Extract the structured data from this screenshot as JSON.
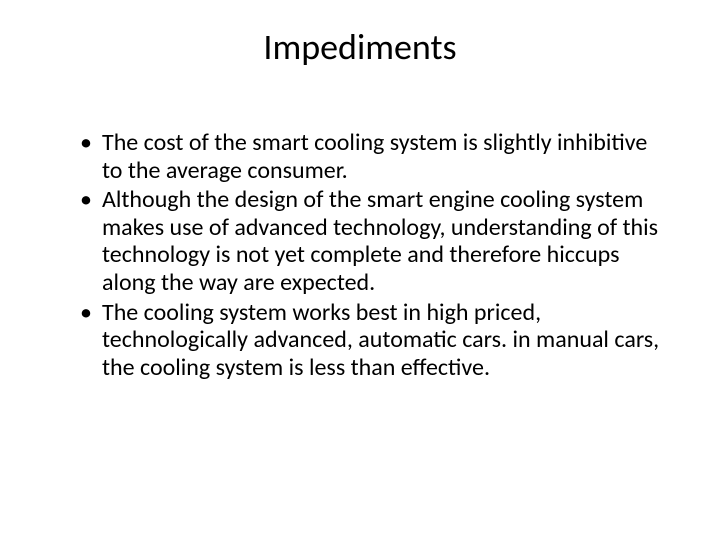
{
  "slide": {
    "title": "Impediments",
    "title_fontsize": 36,
    "body_fontsize": 24,
    "background_color": "#ffffff",
    "text_color": "#000000",
    "font_family": "Calibri",
    "bullets": [
      "The cost of the smart cooling system is slightly inhibitive to the average consumer.",
      "Although the design of the smart engine cooling system makes use of advanced technology, understanding of this technology is not yet complete and therefore hiccups along the way are expected.",
      "The cooling system works best in high priced, technologically advanced, automatic cars. in manual cars, the cooling system is less than effective."
    ]
  }
}
